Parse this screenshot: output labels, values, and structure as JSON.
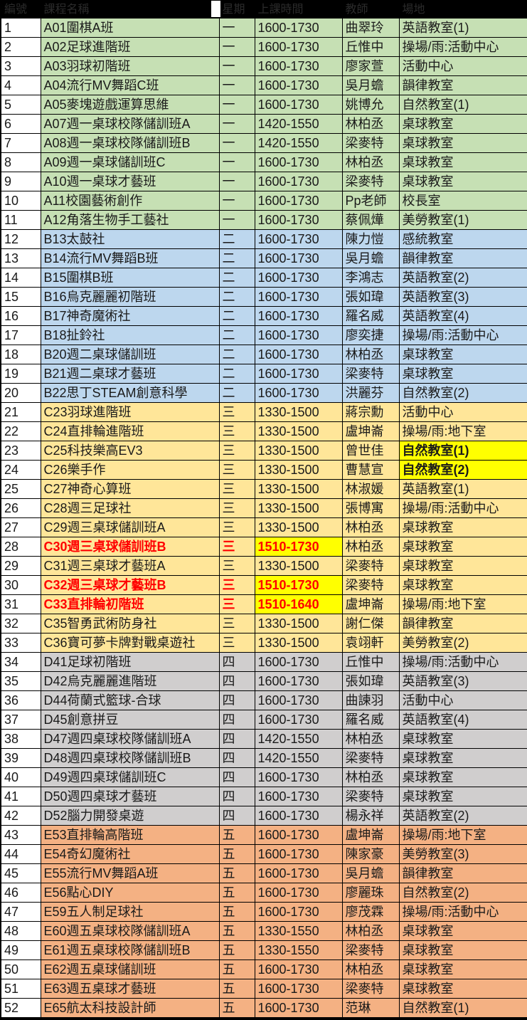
{
  "header": {
    "cols": [
      "編號",
      "課程名稱",
      "星期",
      "上課時間",
      "教師",
      "場地"
    ]
  },
  "colors": {
    "mon": "#c6e0b4",
    "tue": "#bdd7ee",
    "wed": "#ffe699",
    "thu": "#d0cece",
    "fri": "#f4b183",
    "highlight": "#ffff00",
    "alert_text": "#ff0000",
    "header_bg": "#000000"
  },
  "rows": [
    {
      "no": "1",
      "name": "A01圍棋A班",
      "day": "一",
      "time": "1600-1730",
      "teacher": "曲翠玲",
      "place": "英語教室(1)",
      "group": "mon",
      "style": "none"
    },
    {
      "no": "2",
      "name": "A02足球進階班",
      "day": "一",
      "time": "1600-1730",
      "teacher": "丘惟中",
      "place": "操場/雨:活動中心",
      "group": "mon",
      "style": "none"
    },
    {
      "no": "3",
      "name": "A03羽球初階班",
      "day": "一",
      "time": "1600-1730",
      "teacher": "廖家萱",
      "place": "活動中心",
      "group": "mon",
      "style": "none"
    },
    {
      "no": "4",
      "name": "A04流行MV舞蹈C班",
      "day": "一",
      "time": "1600-1730",
      "teacher": "吳月蟾",
      "place": "韻律教室",
      "group": "mon",
      "style": "none"
    },
    {
      "no": "5",
      "name": "A05麥塊遊戲運算思維",
      "day": "一",
      "time": "1600-1730",
      "teacher": "姚博允",
      "place": "自然教室(1)",
      "group": "mon",
      "style": "none"
    },
    {
      "no": "6",
      "name": "A07週一桌球校隊儲訓班A",
      "day": "一",
      "time": "1420-1550",
      "teacher": "林柏丞",
      "place": "桌球教室",
      "group": "mon",
      "style": "none"
    },
    {
      "no": "7",
      "name": "A08週一桌球校隊儲訓班B",
      "day": "一",
      "time": "1420-1550",
      "teacher": "梁麥特",
      "place": "桌球教室",
      "group": "mon",
      "style": "none"
    },
    {
      "no": "8",
      "name": "A09週一桌球儲訓班C",
      "day": "一",
      "time": "1600-1730",
      "teacher": "林柏丞",
      "place": "桌球教室",
      "group": "mon",
      "style": "none"
    },
    {
      "no": "9",
      "name": "A10週一桌球才藝班",
      "day": "一",
      "time": "1600-1730",
      "teacher": "梁麥特",
      "place": "桌球教室",
      "group": "mon",
      "style": "none"
    },
    {
      "no": "10",
      "name": "A11校園藝術創作",
      "day": "一",
      "time": "1600-1730",
      "teacher": "Pp老師",
      "place": "校長室",
      "group": "mon",
      "style": "none"
    },
    {
      "no": "11",
      "name": "A12角落生物手工藝社",
      "day": "一",
      "time": "1600-1730",
      "teacher": "蔡佩燁",
      "place": "美勞教室(1)",
      "group": "mon",
      "style": "none"
    },
    {
      "no": "12",
      "name": "B13太鼓社",
      "day": "二",
      "time": "1600-1730",
      "teacher": "陳力愷",
      "place": "感統教室",
      "group": "tue",
      "style": "none"
    },
    {
      "no": "13",
      "name": "B14流行MV舞蹈B班",
      "day": "二",
      "time": "1600-1730",
      "teacher": "吳月蟾",
      "place": "韻律教室",
      "group": "tue",
      "style": "none"
    },
    {
      "no": "14",
      "name": "B15圍棋B班",
      "day": "二",
      "time": "1600-1730",
      "teacher": "李鴻志",
      "place": "英語教室(2)",
      "group": "tue",
      "style": "none"
    },
    {
      "no": "15",
      "name": "B16烏克麗麗初階班",
      "day": "二",
      "time": "1600-1730",
      "teacher": "張如瑋",
      "place": "英語教室(3)",
      "group": "tue",
      "style": "none"
    },
    {
      "no": "16",
      "name": "B17神奇魔術社",
      "day": "二",
      "time": "1600-1730",
      "teacher": "羅名威",
      "place": "英語教室(4)",
      "group": "tue",
      "style": "none"
    },
    {
      "no": "17",
      "name": "B18扯鈴社",
      "day": "二",
      "time": "1600-1730",
      "teacher": "廖奕捷",
      "place": "操場/雨:活動中心",
      "group": "tue",
      "style": "none"
    },
    {
      "no": "18",
      "name": "B20週二桌球儲訓班",
      "day": "二",
      "time": "1600-1730",
      "teacher": "林柏丞",
      "place": "桌球教室",
      "group": "tue",
      "style": "none"
    },
    {
      "no": "19",
      "name": "B21週二桌球才藝班",
      "day": "二",
      "time": "1600-1730",
      "teacher": "梁麥特",
      "place": "桌球教室",
      "group": "tue",
      "style": "none"
    },
    {
      "no": "20",
      "name": "B22思丁STEAM創意科學",
      "day": "二",
      "time": "1600-1730",
      "teacher": "洪麗芬",
      "place": "自然教室(2)",
      "group": "tue",
      "style": "none"
    },
    {
      "no": "21",
      "name": "C23羽球進階班",
      "day": "三",
      "time": "1330-1500",
      "teacher": "蔣宗勳",
      "place": "活動中心",
      "group": "wed",
      "style": "none"
    },
    {
      "no": "22",
      "name": "C24直排輪進階班",
      "day": "三",
      "time": "1330-1500",
      "teacher": "盧坤崙",
      "place": "操場/雨:地下室",
      "group": "wed",
      "style": "none"
    },
    {
      "no": "23",
      "name": "C25科技樂高EV3",
      "day": "三",
      "time": "1330-1500",
      "teacher": "曾世佳",
      "place": "自然教室(1)",
      "group": "wed",
      "style": "yellow-place"
    },
    {
      "no": "24",
      "name": "C26樂手作",
      "day": "三",
      "time": "1330-1500",
      "teacher": "曹慧宣",
      "place": "自然教室(2)",
      "group": "wed",
      "style": "yellow-place"
    },
    {
      "no": "25",
      "name": "C27神奇心算班",
      "day": "三",
      "time": "1330-1500",
      "teacher": "林淑媛",
      "place": "英語教室(1)",
      "group": "wed",
      "style": "none"
    },
    {
      "no": "26",
      "name": "C28週三足球社",
      "day": "三",
      "time": "1330-1500",
      "teacher": "張博寓",
      "place": "操場/雨:活動中心",
      "group": "wed",
      "style": "none"
    },
    {
      "no": "27",
      "name": "C29週三桌球儲訓班A",
      "day": "三",
      "time": "1330-1500",
      "teacher": "林柏丞",
      "place": "桌球教室",
      "group": "wed",
      "style": "none"
    },
    {
      "no": "28",
      "name": "C30週三桌球儲訓班B",
      "day": "三",
      "time": "1510-1730",
      "teacher": "林柏丞",
      "place": "桌球教室",
      "group": "wed",
      "style": "red-time"
    },
    {
      "no": "29",
      "name": "C31週三桌球才藝班A",
      "day": "三",
      "time": "1330-1500",
      "teacher": "梁麥特",
      "place": "桌球教室",
      "group": "wed",
      "style": "none"
    },
    {
      "no": "30",
      "name": "C32週三桌球才藝班B",
      "day": "三",
      "time": "1510-1730",
      "teacher": "梁麥特",
      "place": "桌球教室",
      "group": "wed",
      "style": "red-time"
    },
    {
      "no": "31",
      "name": "C33直排輪初階班",
      "day": "三",
      "time": "1510-1640",
      "teacher": "盧坤崙",
      "place": "操場/雨:地下室",
      "group": "wed",
      "style": "red-time"
    },
    {
      "no": "32",
      "name": "C35智勇武術防身社",
      "day": "三",
      "time": "1330-1500",
      "teacher": "謝仁傑",
      "place": "韻律教室",
      "group": "wed",
      "style": "none"
    },
    {
      "no": "33",
      "name": "C36寶可夢卡牌對戰桌遊社",
      "day": "三",
      "time": "1330-1500",
      "teacher": "袁翊軒",
      "place": "美勞教室(2)",
      "group": "wed",
      "style": "none"
    },
    {
      "no": "34",
      "name": "D41足球初階班",
      "day": "四",
      "time": "1600-1730",
      "teacher": "丘惟中",
      "place": "操場/雨:活動中心",
      "group": "thu",
      "style": "none"
    },
    {
      "no": "35",
      "name": "D42烏克麗麗進階班",
      "day": "四",
      "time": "1600-1730",
      "teacher": "張如瑋",
      "place": "英語教室(3)",
      "group": "thu",
      "style": "none"
    },
    {
      "no": "36",
      "name": "D44荷蘭式籃球-合球",
      "day": "四",
      "time": "1600-1730",
      "teacher": "曲諫羽",
      "place": "活動中心",
      "group": "thu",
      "style": "none"
    },
    {
      "no": "37",
      "name": "D45創意拼豆",
      "day": "四",
      "time": "1600-1730",
      "teacher": "羅名威",
      "place": "英語教室(4)",
      "group": "thu",
      "style": "none"
    },
    {
      "no": "38",
      "name": "D47週四桌球校隊儲訓班A",
      "day": "四",
      "time": "1420-1550",
      "teacher": "林柏丞",
      "place": "桌球教室",
      "group": "thu",
      "style": "none"
    },
    {
      "no": "39",
      "name": "D48週四桌球校隊儲訓班B",
      "day": "四",
      "time": "1420-1550",
      "teacher": "梁麥特",
      "place": "桌球教室",
      "group": "thu",
      "style": "none"
    },
    {
      "no": "40",
      "name": "D49週四桌球儲訓班C",
      "day": "四",
      "time": "1600-1730",
      "teacher": "林柏丞",
      "place": "桌球教室",
      "group": "thu",
      "style": "none"
    },
    {
      "no": "41",
      "name": "D50週四桌球才藝班",
      "day": "四",
      "time": "1600-1730",
      "teacher": "梁麥特",
      "place": "桌球教室",
      "group": "thu",
      "style": "none"
    },
    {
      "no": "42",
      "name": "D52腦力開發桌遊",
      "day": "四",
      "time": "1600-1730",
      "teacher": "楊永祥",
      "place": "英語教室(2)",
      "group": "thu",
      "style": "none"
    },
    {
      "no": "43",
      "name": "E53直排輪高階班",
      "day": "五",
      "time": "1600-1730",
      "teacher": "盧坤崙",
      "place": "操場/雨:地下室",
      "group": "fri",
      "style": "none"
    },
    {
      "no": "44",
      "name": "E54奇幻魔術社",
      "day": "五",
      "time": "1600-1730",
      "teacher": "陳家豪",
      "place": "美勞教室(3)",
      "group": "fri",
      "style": "none"
    },
    {
      "no": "45",
      "name": "E55流行MV舞蹈A班",
      "day": "五",
      "time": "1600-1730",
      "teacher": "吳月蟾",
      "place": "韻律教室",
      "group": "fri",
      "style": "none"
    },
    {
      "no": "46",
      "name": "E56點心DIY",
      "day": "五",
      "time": "1600-1730",
      "teacher": "廖麗珠",
      "place": "自然教室(2)",
      "group": "fri",
      "style": "none"
    },
    {
      "no": "47",
      "name": "E59五人制足球社",
      "day": "五",
      "time": "1600-1730",
      "teacher": "廖茂霖",
      "place": "操場/雨:活動中心",
      "group": "fri",
      "style": "none"
    },
    {
      "no": "48",
      "name": "E60週五桌球校隊儲訓班A",
      "day": "五",
      "time": "1330-1550",
      "teacher": "林柏丞",
      "place": "桌球教室",
      "group": "fri",
      "style": "none"
    },
    {
      "no": "49",
      "name": "E61週五桌球校隊儲訓班B",
      "day": "五",
      "time": "1330-1550",
      "teacher": "梁麥特",
      "place": "桌球教室",
      "group": "fri",
      "style": "none"
    },
    {
      "no": "50",
      "name": "E62週五桌球儲訓班",
      "day": "五",
      "time": "1600-1730",
      "teacher": "林柏丞",
      "place": "桌球教室",
      "group": "fri",
      "style": "none"
    },
    {
      "no": "51",
      "name": "E63週五桌球才藝班",
      "day": "五",
      "time": "1600-1730",
      "teacher": "梁麥特",
      "place": "桌球教室",
      "group": "fri",
      "style": "none"
    },
    {
      "no": "52",
      "name": "E65航太科技設計師",
      "day": "五",
      "time": "1600-1730",
      "teacher": "范琳",
      "place": "自然教室(1)",
      "group": "fri",
      "style": "none"
    }
  ]
}
